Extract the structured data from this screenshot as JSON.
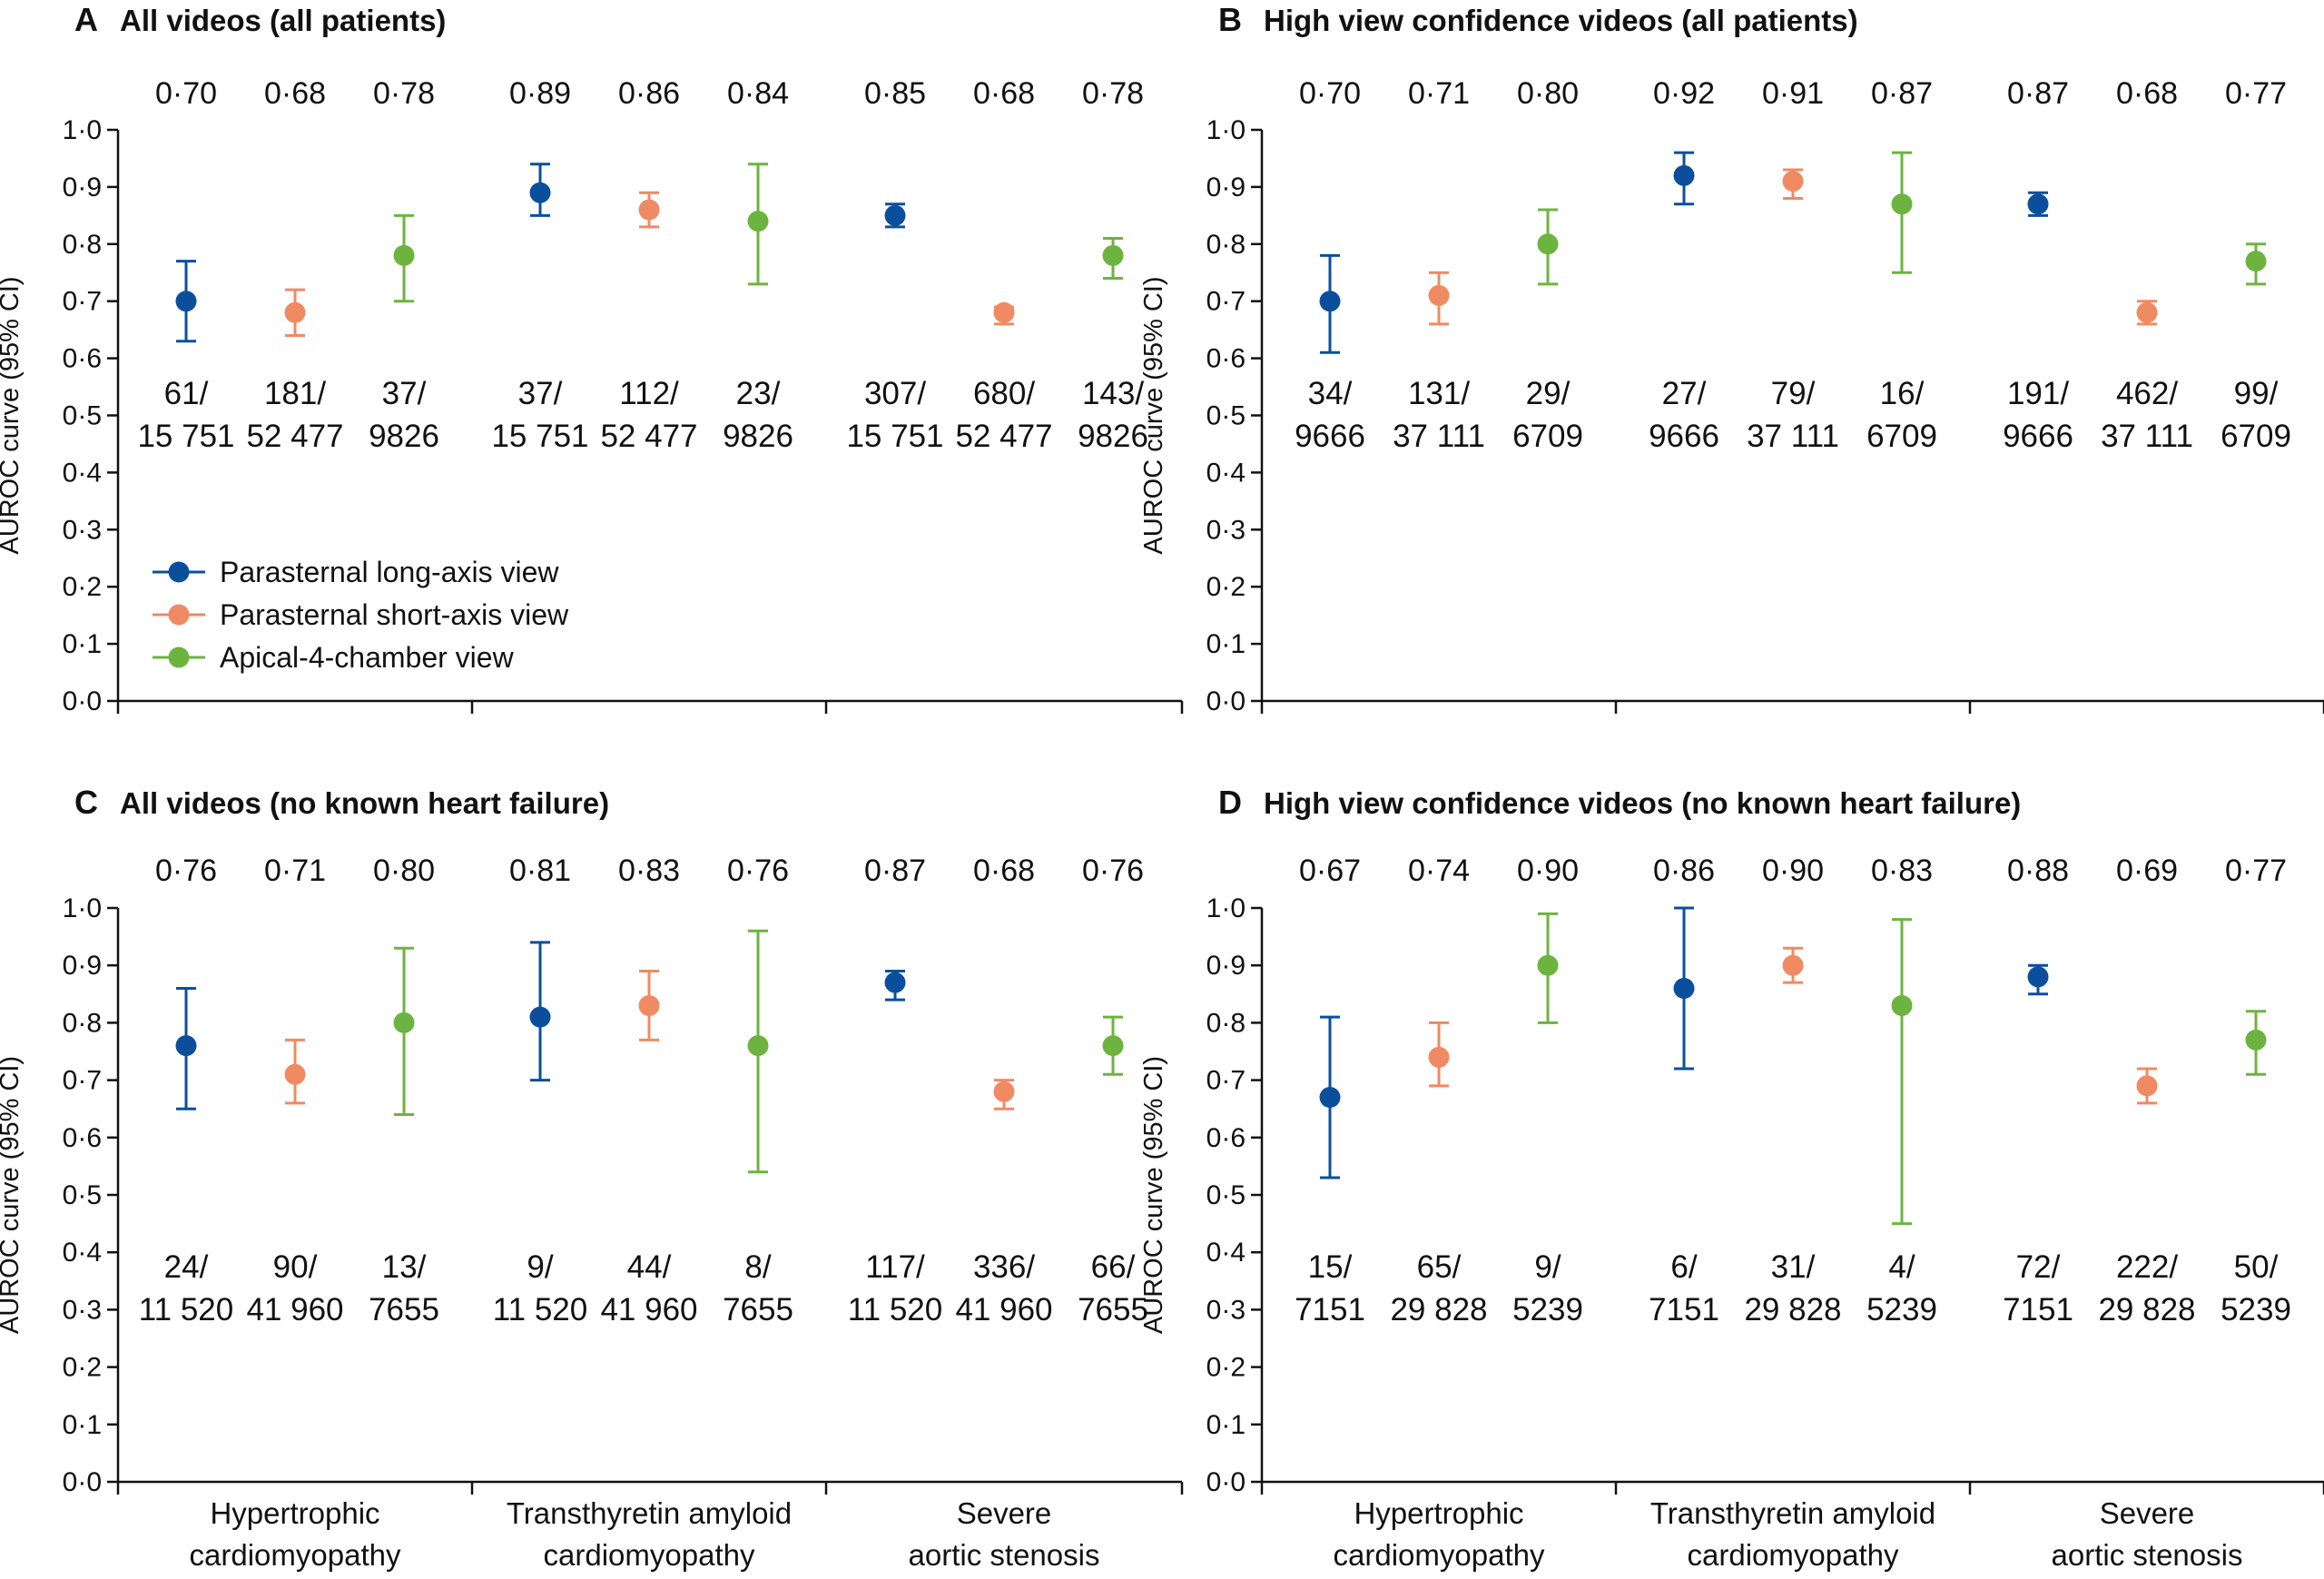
{
  "chart_data": {
    "type": "scatter",
    "y_tick_labels": [
      "0·0",
      "0·1",
      "0·2",
      "0·3",
      "0·4",
      "0·5",
      "0·6",
      "0·7",
      "0·8",
      "0·9",
      "1·0"
    ],
    "ylim": [
      0,
      1
    ],
    "ylabel": "AUROC curve (95% CI)",
    "grid": false,
    "categories": [
      {
        "lines": [
          "Hypertrophic",
          "cardiomyopathy"
        ]
      },
      {
        "lines": [
          "Transthyretin amyloid",
          "cardiomyopathy"
        ]
      },
      {
        "lines": [
          "Severe",
          "aortic stenosis"
        ]
      }
    ],
    "legend": {
      "placement": "inside-lower-left of panel A",
      "items": [
        {
          "name": "Parasternal long-axis view",
          "color": "#0b4f9c"
        },
        {
          "name": "Parasternal short-axis view",
          "color": "#f08a62"
        },
        {
          "name": "Apical-4-chamber view",
          "color": "#6cb43f"
        }
      ]
    },
    "series_colors": [
      "#0b4f9c",
      "#f08a62",
      "#6cb43f"
    ],
    "panels": [
      {
        "letter": "A",
        "title": "All videos (all patients)",
        "groups": [
          {
            "points": [
              {
                "y": 0.7,
                "lo": 0.63,
                "hi": 0.77,
                "auc": "0·70",
                "count": [
                  "61/",
                  "15 751"
                ]
              },
              {
                "y": 0.68,
                "lo": 0.64,
                "hi": 0.72,
                "auc": "0·68",
                "count": [
                  "181/",
                  "52 477"
                ]
              },
              {
                "y": 0.78,
                "lo": 0.7,
                "hi": 0.85,
                "auc": "0·78",
                "count": [
                  "37/",
                  "9826"
                ]
              }
            ]
          },
          {
            "points": [
              {
                "y": 0.89,
                "lo": 0.85,
                "hi": 0.94,
                "auc": "0·89",
                "count": [
                  "37/",
                  "15 751"
                ]
              },
              {
                "y": 0.86,
                "lo": 0.83,
                "hi": 0.89,
                "auc": "0·86",
                "count": [
                  "112/",
                  "52 477"
                ]
              },
              {
                "y": 0.84,
                "lo": 0.73,
                "hi": 0.94,
                "auc": "0·84",
                "count": [
                  "23/",
                  "9826"
                ]
              }
            ]
          },
          {
            "points": [
              {
                "y": 0.85,
                "lo": 0.83,
                "hi": 0.87,
                "auc": "0·85",
                "count": [
                  "307/",
                  "15 751"
                ]
              },
              {
                "y": 0.68,
                "lo": 0.66,
                "hi": 0.69,
                "auc": "0·68",
                "count": [
                  "680/",
                  "52 477"
                ]
              },
              {
                "y": 0.78,
                "lo": 0.74,
                "hi": 0.81,
                "auc": "0·78",
                "count": [
                  "143/",
                  "9826"
                ]
              }
            ]
          }
        ]
      },
      {
        "letter": "B",
        "title": "High view confidence videos (all patients)",
        "groups": [
          {
            "points": [
              {
                "y": 0.7,
                "lo": 0.61,
                "hi": 0.78,
                "auc": "0·70",
                "count": [
                  "34/",
                  "9666"
                ]
              },
              {
                "y": 0.71,
                "lo": 0.66,
                "hi": 0.75,
                "auc": "0·71",
                "count": [
                  "131/",
                  "37 111"
                ]
              },
              {
                "y": 0.8,
                "lo": 0.73,
                "hi": 0.86,
                "auc": "0·80",
                "count": [
                  "29/",
                  "6709"
                ]
              }
            ]
          },
          {
            "points": [
              {
                "y": 0.92,
                "lo": 0.87,
                "hi": 0.96,
                "auc": "0·92",
                "count": [
                  "27/",
                  "9666"
                ]
              },
              {
                "y": 0.91,
                "lo": 0.88,
                "hi": 0.93,
                "auc": "0·91",
                "count": [
                  "79/",
                  "37 111"
                ]
              },
              {
                "y": 0.87,
                "lo": 0.75,
                "hi": 0.96,
                "auc": "0·87",
                "count": [
                  "16/",
                  "6709"
                ]
              }
            ]
          },
          {
            "points": [
              {
                "y": 0.87,
                "lo": 0.85,
                "hi": 0.89,
                "auc": "0·87",
                "count": [
                  "191/",
                  "9666"
                ]
              },
              {
                "y": 0.68,
                "lo": 0.66,
                "hi": 0.7,
                "auc": "0·68",
                "count": [
                  "462/",
                  "37 111"
                ]
              },
              {
                "y": 0.77,
                "lo": 0.73,
                "hi": 0.8,
                "auc": "0·77",
                "count": [
                  "99/",
                  "6709"
                ]
              }
            ]
          }
        ]
      },
      {
        "letter": "C",
        "title": "All videos (no known heart failure)",
        "groups": [
          {
            "points": [
              {
                "y": 0.76,
                "lo": 0.65,
                "hi": 0.86,
                "auc": "0·76",
                "count": [
                  "24/",
                  "11 520"
                ]
              },
              {
                "y": 0.71,
                "lo": 0.66,
                "hi": 0.77,
                "auc": "0·71",
                "count": [
                  "90/",
                  "41 960"
                ]
              },
              {
                "y": 0.8,
                "lo": 0.64,
                "hi": 0.93,
                "auc": "0·80",
                "count": [
                  "13/",
                  "7655"
                ]
              }
            ]
          },
          {
            "points": [
              {
                "y": 0.81,
                "lo": 0.7,
                "hi": 0.94,
                "auc": "0·81",
                "count": [
                  "9/",
                  "11 520"
                ]
              },
              {
                "y": 0.83,
                "lo": 0.77,
                "hi": 0.89,
                "auc": "0·83",
                "count": [
                  "44/",
                  "41 960"
                ]
              },
              {
                "y": 0.76,
                "lo": 0.54,
                "hi": 0.96,
                "auc": "0·76",
                "count": [
                  "8/",
                  "7655"
                ]
              }
            ]
          },
          {
            "points": [
              {
                "y": 0.87,
                "lo": 0.84,
                "hi": 0.89,
                "auc": "0·87",
                "count": [
                  "117/",
                  "11 520"
                ]
              },
              {
                "y": 0.68,
                "lo": 0.65,
                "hi": 0.7,
                "auc": "0·68",
                "count": [
                  "336/",
                  "41 960"
                ]
              },
              {
                "y": 0.76,
                "lo": 0.71,
                "hi": 0.81,
                "auc": "0·76",
                "count": [
                  "66/",
                  "7655"
                ]
              }
            ]
          }
        ]
      },
      {
        "letter": "D",
        "title": "High view confidence videos (no known heart failure)",
        "groups": [
          {
            "points": [
              {
                "y": 0.67,
                "lo": 0.53,
                "hi": 0.81,
                "auc": "0·67",
                "count": [
                  "15/",
                  "7151"
                ]
              },
              {
                "y": 0.74,
                "lo": 0.69,
                "hi": 0.8,
                "auc": "0·74",
                "count": [
                  "65/",
                  "29 828"
                ]
              },
              {
                "y": 0.9,
                "lo": 0.8,
                "hi": 0.99,
                "auc": "0·90",
                "count": [
                  "9/",
                  "5239"
                ]
              }
            ]
          },
          {
            "points": [
              {
                "y": 0.86,
                "lo": 0.72,
                "hi": 1.0,
                "auc": "0·86",
                "count": [
                  "6/",
                  "7151"
                ]
              },
              {
                "y": 0.9,
                "lo": 0.87,
                "hi": 0.93,
                "auc": "0·90",
                "count": [
                  "31/",
                  "29 828"
                ]
              },
              {
                "y": 0.83,
                "lo": 0.45,
                "hi": 0.98,
                "auc": "0·83",
                "count": [
                  "4/",
                  "5239"
                ]
              }
            ]
          },
          {
            "points": [
              {
                "y": 0.88,
                "lo": 0.85,
                "hi": 0.9,
                "auc": "0·88",
                "count": [
                  "72/",
                  "7151"
                ]
              },
              {
                "y": 0.69,
                "lo": 0.66,
                "hi": 0.72,
                "auc": "0·69",
                "count": [
                  "222/",
                  "29 828"
                ]
              },
              {
                "y": 0.77,
                "lo": 0.71,
                "hi": 0.82,
                "auc": "0·77",
                "count": [
                  "50/",
                  "5239"
                ]
              }
            ]
          }
        ]
      }
    ]
  }
}
